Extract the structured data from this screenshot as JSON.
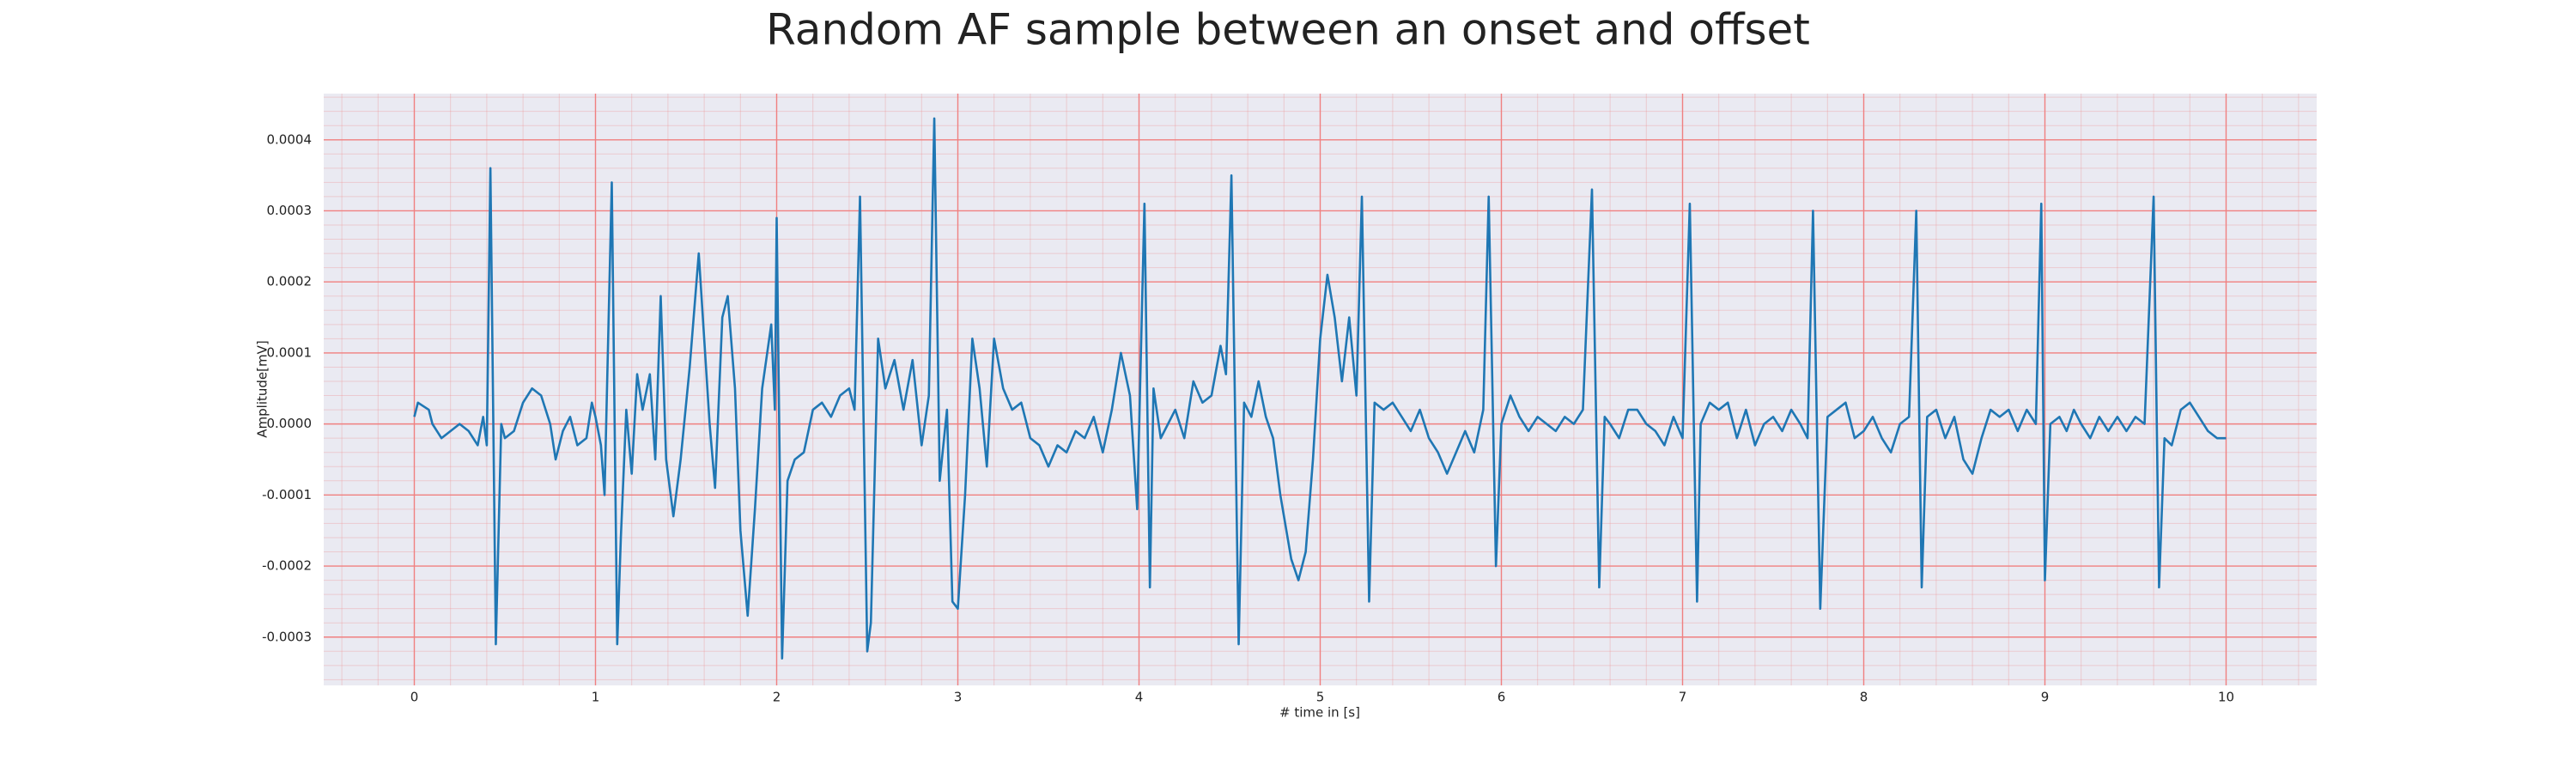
{
  "chart_data": {
    "type": "line",
    "title": "Random AF sample between an onset and offset",
    "xlabel": "# time in [s]",
    "ylabel": "Amplitude[mV]",
    "xlim": [
      -0.5,
      10.5
    ],
    "ylim": [
      -0.000368,
      0.000465
    ],
    "xticks": [
      0,
      1,
      2,
      3,
      4,
      5,
      6,
      7,
      8,
      9,
      10
    ],
    "yticks": [
      -0.0003,
      -0.0002,
      -0.0001,
      {
        "value": 0,
        "label": "0.0000"
      },
      0.0001,
      0.0002,
      0.0003,
      0.0004
    ],
    "grid": true,
    "grid_color": "#f08080",
    "minor_grid": true,
    "background": "#eaeaf2",
    "series": [
      {
        "name": "Amplitude",
        "color": "#1f77b4",
        "x": [
          0,
          0.02,
          0.08,
          0.1,
          0.15,
          0.2,
          0.25,
          0.3,
          0.35,
          0.38,
          0.4,
          0.42,
          0.45,
          0.48,
          0.5,
          0.55,
          0.6,
          0.65,
          0.7,
          0.75,
          0.78,
          0.82,
          0.86,
          0.9,
          0.95,
          0.98,
          1.0,
          1.03,
          1.05,
          1.09,
          1.12,
          1.14,
          1.17,
          1.2,
          1.23,
          1.26,
          1.3,
          1.33,
          1.36,
          1.39,
          1.43,
          1.47,
          1.52,
          1.57,
          1.63,
          1.66,
          1.7,
          1.73,
          1.77,
          1.8,
          1.84,
          1.88,
          1.92,
          1.97,
          1.99,
          2.0,
          2.03,
          2.06,
          2.1,
          2.15,
          2.2,
          2.25,
          2.3,
          2.35,
          2.4,
          2.43,
          2.46,
          2.5,
          2.52,
          2.56,
          2.6,
          2.65,
          2.7,
          2.75,
          2.8,
          2.84,
          2.87,
          2.9,
          2.94,
          2.97,
          3.0,
          3.04,
          3.08,
          3.12,
          3.16,
          3.2,
          3.25,
          3.3,
          3.35,
          3.4,
          3.45,
          3.5,
          3.55,
          3.6,
          3.65,
          3.7,
          3.75,
          3.8,
          3.85,
          3.9,
          3.95,
          3.99,
          4.03,
          4.06,
          4.08,
          4.12,
          4.16,
          4.2,
          4.25,
          4.3,
          4.35,
          4.4,
          4.45,
          4.48,
          4.51,
          4.55,
          4.58,
          4.62,
          4.66,
          4.7,
          4.74,
          4.78,
          4.8,
          4.84,
          4.88,
          4.92,
          4.96,
          5.0,
          5.04,
          5.08,
          5.12,
          5.16,
          5.2,
          5.23,
          5.27,
          5.3,
          5.35,
          5.4,
          5.45,
          5.5,
          5.55,
          5.6,
          5.65,
          5.7,
          5.75,
          5.8,
          5.85,
          5.9,
          5.93,
          5.97,
          6.0,
          6.05,
          6.1,
          6.15,
          6.2,
          6.25,
          6.3,
          6.35,
          6.4,
          6.45,
          6.5,
          6.54,
          6.57,
          6.6,
          6.65,
          6.7,
          6.75,
          6.8,
          6.85,
          6.9,
          6.95,
          7.0,
          7.04,
          7.08,
          7.1,
          7.15,
          7.2,
          7.25,
          7.3,
          7.35,
          7.4,
          7.45,
          7.5,
          7.55,
          7.6,
          7.65,
          7.69,
          7.72,
          7.76,
          7.8,
          7.85,
          7.9,
          7.95,
          8.0,
          8.05,
          8.1,
          8.15,
          8.2,
          8.25,
          8.29,
          8.32,
          8.35,
          8.4,
          8.45,
          8.5,
          8.55,
          8.6,
          8.65,
          8.7,
          8.75,
          8.8,
          8.85,
          8.9,
          8.95,
          8.98,
          9.0,
          9.03,
          9.08,
          9.12,
          9.16,
          9.2,
          9.25,
          9.3,
          9.35,
          9.4,
          9.45,
          9.5,
          9.55,
          9.6,
          9.63,
          9.66,
          9.7,
          9.75,
          9.8,
          9.85,
          9.9,
          9.95,
          10.0
        ],
        "values": [
          1e-05,
          3e-05,
          2e-05,
          0,
          -2e-05,
          -1e-05,
          0,
          -1e-05,
          -3e-05,
          1e-05,
          -3e-05,
          0.00036,
          -0.00031,
          0,
          -2e-05,
          -1e-05,
          3e-05,
          5e-05,
          4e-05,
          0,
          -5e-05,
          -1e-05,
          1e-05,
          -3e-05,
          -2e-05,
          3e-05,
          1e-05,
          -3e-05,
          -0.0001,
          0.00034,
          -0.00031,
          -0.00016,
          2e-05,
          -7e-05,
          7e-05,
          2e-05,
          7e-05,
          -5e-05,
          0.00018,
          -5e-05,
          -0.00013,
          -5e-05,
          8e-05,
          0.00024,
          0,
          -9e-05,
          0.00015,
          0.00018,
          5e-05,
          -0.00015,
          -0.00027,
          -0.00012,
          5e-05,
          0.00014,
          2e-05,
          0.00029,
          -0.00033,
          -8e-05,
          -5e-05,
          -4e-05,
          2e-05,
          3e-05,
          1e-05,
          4e-05,
          5e-05,
          2e-05,
          0.00032,
          -0.00032,
          -0.00028,
          0.00012,
          5e-05,
          9e-05,
          2e-05,
          9e-05,
          -3e-05,
          4e-05,
          0.00043,
          -8e-05,
          2e-05,
          -0.00025,
          -0.00026,
          -0.0001,
          0.00012,
          5e-05,
          -6e-05,
          0.00012,
          5e-05,
          2e-05,
          3e-05,
          -2e-05,
          -3e-05,
          -6e-05,
          -3e-05,
          -4e-05,
          -1e-05,
          -2e-05,
          1e-05,
          -4e-05,
          2e-05,
          0.0001,
          4e-05,
          -0.00012,
          0.00031,
          -0.00023,
          5e-05,
          -2e-05,
          0,
          2e-05,
          -2e-05,
          6e-05,
          3e-05,
          4e-05,
          0.00011,
          7e-05,
          0.00035,
          -0.00031,
          3e-05,
          1e-05,
          6e-05,
          1e-05,
          -2e-05,
          -0.0001,
          -0.00013,
          -0.00019,
          -0.00022,
          -0.00018,
          -5e-05,
          0.00012,
          0.00021,
          0.00015,
          6e-05,
          0.00015,
          4e-05,
          0.00032,
          -0.00025,
          3e-05,
          2e-05,
          3e-05,
          1e-05,
          -1e-05,
          2e-05,
          -2e-05,
          -4e-05,
          -7e-05,
          -4e-05,
          -1e-05,
          -4e-05,
          2e-05,
          0.00032,
          -0.0002,
          0,
          4e-05,
          1e-05,
          -1e-05,
          1e-05,
          0,
          -1e-05,
          1e-05,
          0,
          2e-05,
          0.00033,
          -0.00023,
          1e-05,
          0,
          -2e-05,
          2e-05,
          2e-05,
          0,
          -1e-05,
          -3e-05,
          1e-05,
          -2e-05,
          0.00031,
          -0.00025,
          0,
          3e-05,
          2e-05,
          3e-05,
          -2e-05,
          2e-05,
          -3e-05,
          0,
          1e-05,
          -1e-05,
          2e-05,
          0,
          -2e-05,
          0.0003,
          -0.00026,
          1e-05,
          2e-05,
          3e-05,
          -2e-05,
          -1e-05,
          1e-05,
          -2e-05,
          -4e-05,
          0,
          1e-05,
          0.0003,
          -0.00023,
          1e-05,
          2e-05,
          -2e-05,
          1e-05,
          -5e-05,
          -7e-05,
          -2e-05,
          2e-05,
          1e-05,
          2e-05,
          -1e-05,
          2e-05,
          0,
          0.00031,
          -0.00022,
          0,
          1e-05,
          -1e-05,
          2e-05,
          0,
          -2e-05,
          1e-05,
          -1e-05,
          1e-05,
          -1e-05,
          1e-05,
          0,
          0.00032,
          -0.00023,
          -2e-05,
          -3e-05,
          2e-05,
          3e-05,
          1e-05,
          -1e-05,
          -2e-05,
          -2e-05
        ]
      }
    ]
  }
}
